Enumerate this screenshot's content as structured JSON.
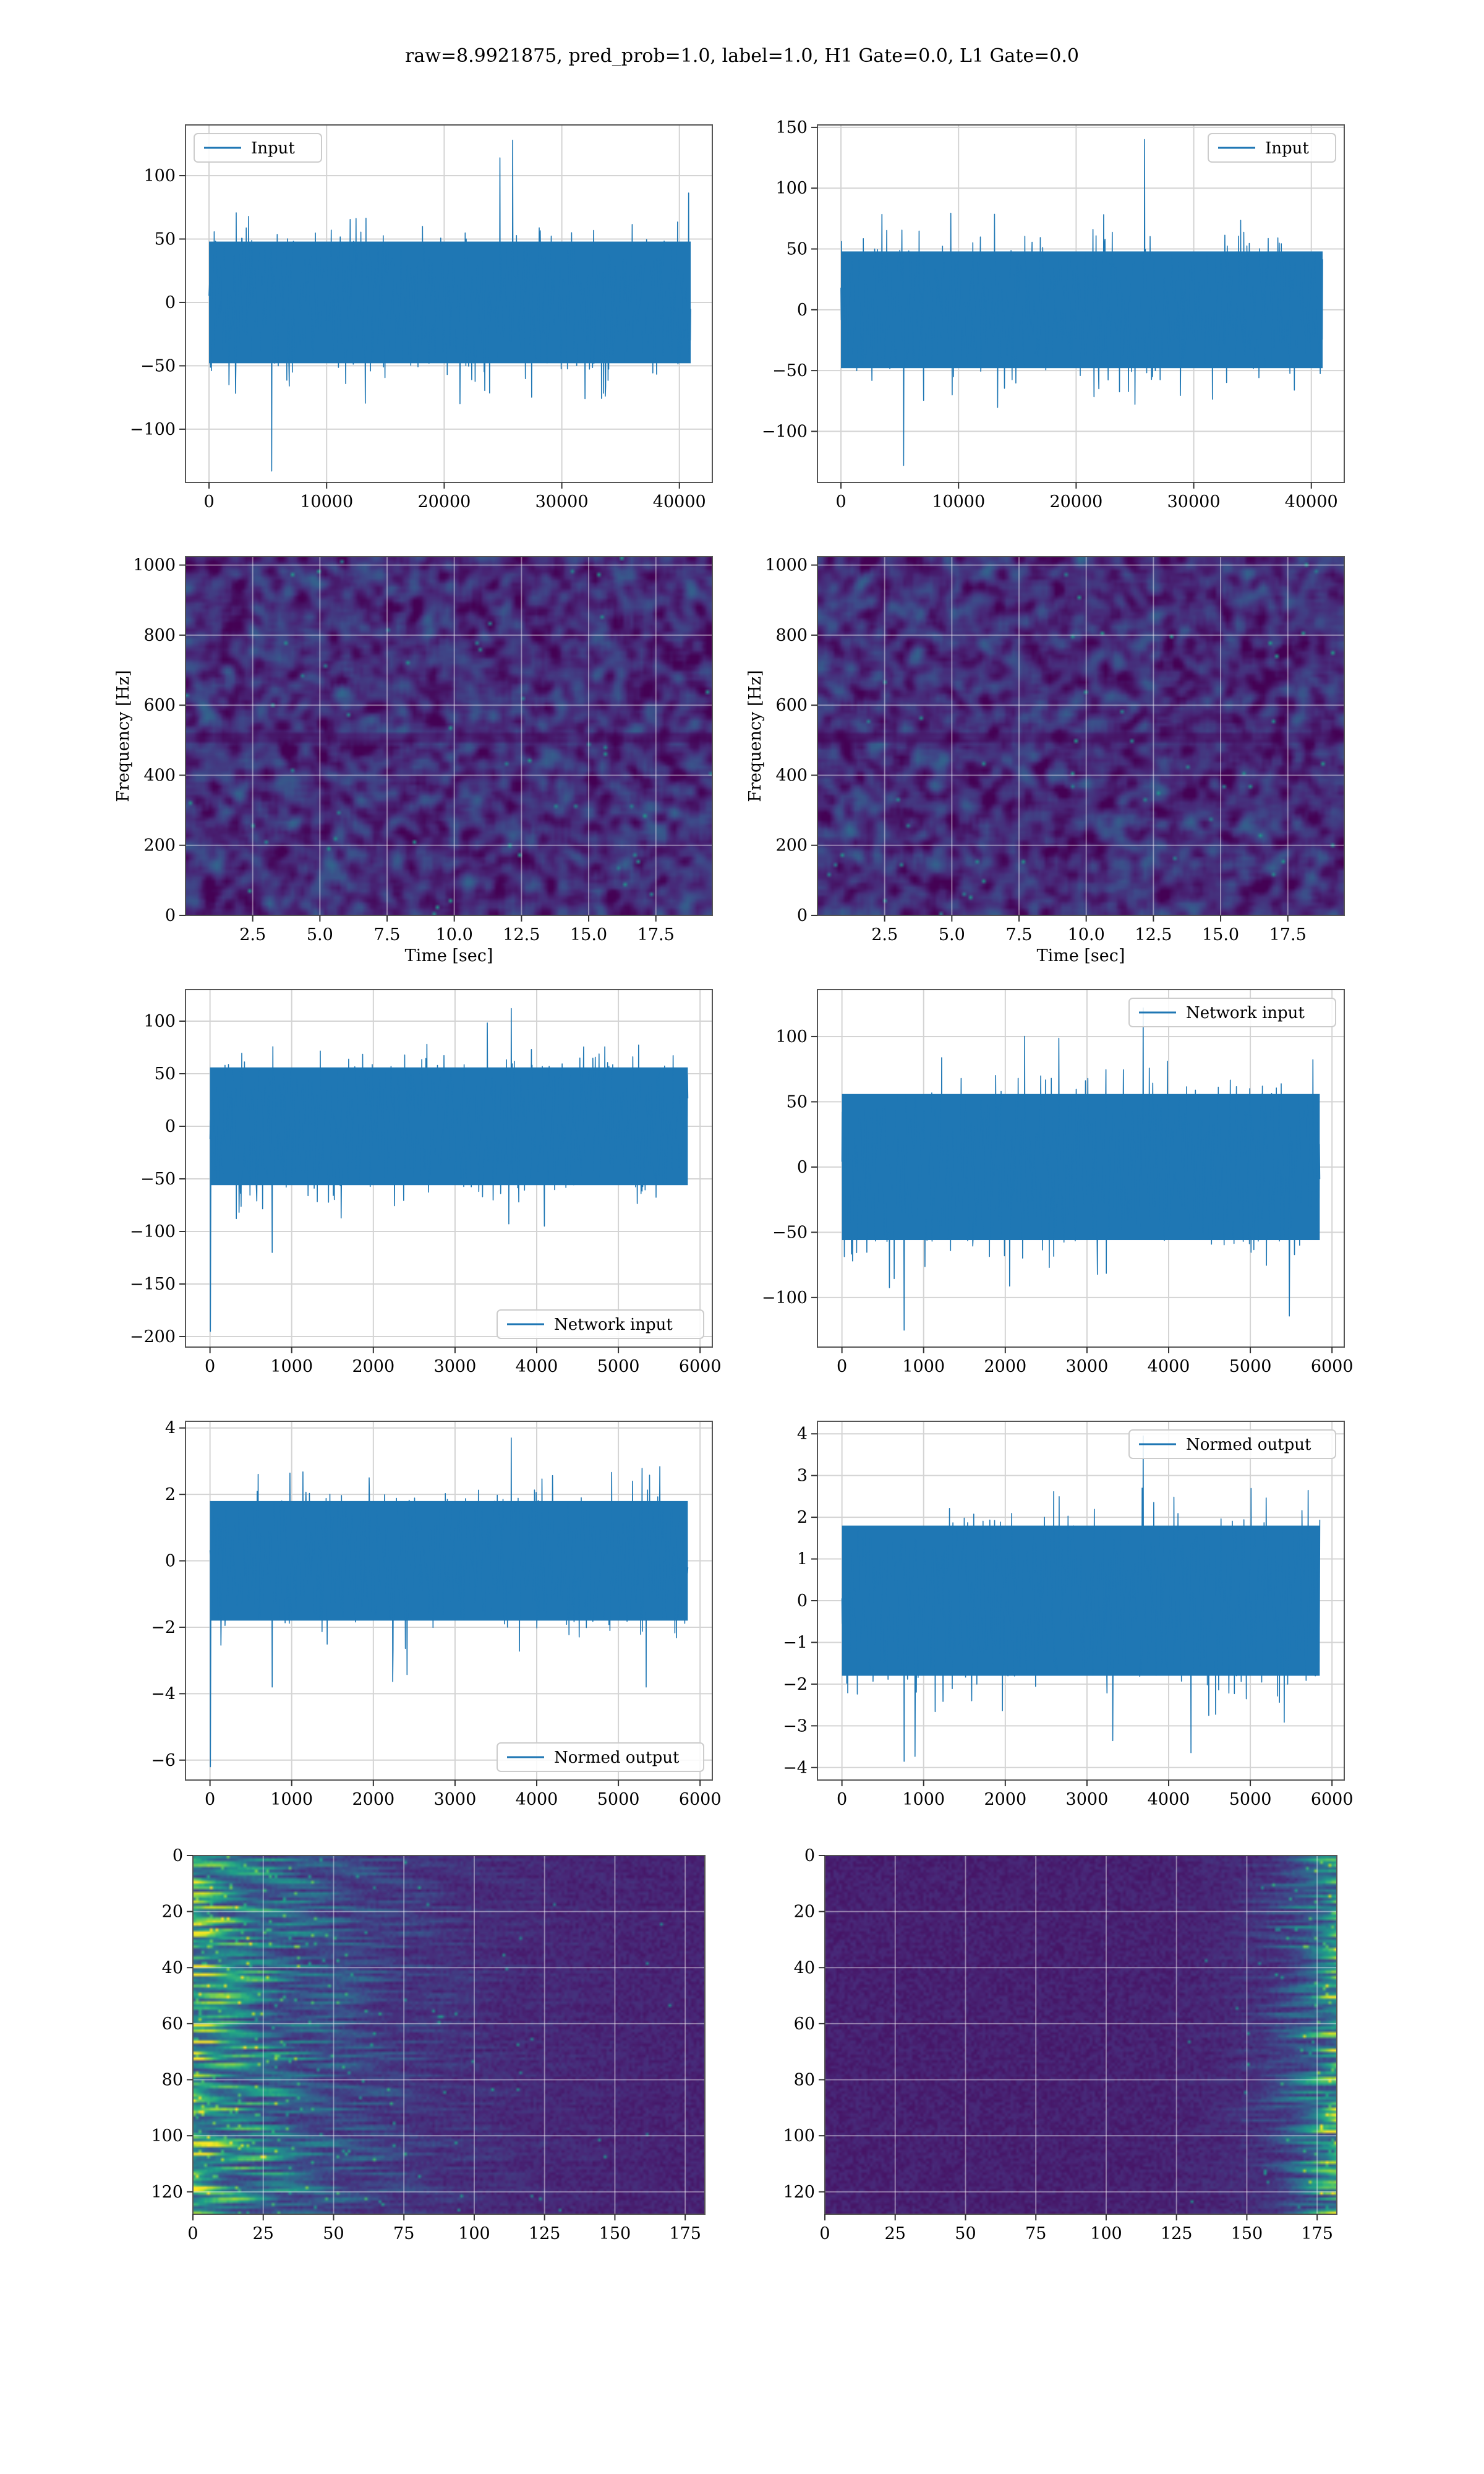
{
  "suptitle": "raw=8.9921875, pred_prob=1.0, label=1.0, H1 Gate=0.0, L1 Gate=0.0",
  "colors": {
    "line": "#1f77b4",
    "grid": "#d4d4d4",
    "axes": "#555555",
    "viridis": [
      "#440154",
      "#482878",
      "#3e4989",
      "#31688e",
      "#26828e",
      "#1f9e89",
      "#35b779",
      "#6ece58",
      "#b5de2b",
      "#fde725"
    ]
  },
  "chart_data": [
    {
      "id": "h1-input",
      "type": "line",
      "legend_label": "Input",
      "legend_loc": "upper left",
      "xlim": [
        -2000,
        42800
      ],
      "ylim": [
        -142,
        140
      ],
      "xticks": [
        0,
        10000,
        20000,
        30000,
        40000
      ],
      "xtick_labels": [
        "0",
        "10000",
        "20000",
        "30000",
        "40000"
      ],
      "yticks": [
        -100,
        -50,
        0,
        50,
        100
      ],
      "ytick_labels": [
        "−100",
        "−50",
        "0",
        "50",
        "100"
      ],
      "xlabel": "",
      "ylabel": "",
      "grid": true,
      "signal": {
        "n_points": 40960,
        "x_start": 0,
        "x_end": 40960,
        "std": 24,
        "max": 128,
        "min": -133,
        "spike_x": null,
        "spike_y": null
      }
    },
    {
      "id": "l1-input",
      "type": "line",
      "legend_label": "Input",
      "legend_loc": "upper right",
      "xlim": [
        -2000,
        42800
      ],
      "ylim": [
        -142,
        152
      ],
      "xticks": [
        0,
        10000,
        20000,
        30000,
        40000
      ],
      "xtick_labels": [
        "0",
        "10000",
        "20000",
        "30000",
        "40000"
      ],
      "yticks": [
        -100,
        -50,
        0,
        50,
        100,
        150
      ],
      "ytick_labels": [
        "−100",
        "−50",
        "0",
        "50",
        "100",
        "150"
      ],
      "xlabel": "",
      "ylabel": "",
      "grid": true,
      "signal": {
        "n_points": 40960,
        "x_start": 0,
        "x_end": 40960,
        "std": 24,
        "max": 140,
        "min": -128,
        "spike_x": null,
        "spike_y": null
      }
    },
    {
      "id": "h1-spectrogram",
      "type": "heatmap",
      "variant": "spectrogram",
      "xlim": [
        0,
        19.6
      ],
      "ylim": [
        0,
        1024
      ],
      "xticks": [
        2.5,
        5.0,
        7.5,
        10.0,
        12.5,
        15.0,
        17.5
      ],
      "xtick_labels": [
        "2.5",
        "5.0",
        "7.5",
        "10.0",
        "12.5",
        "15.0",
        "17.5"
      ],
      "yticks": [
        0,
        200,
        400,
        600,
        800,
        1000
      ],
      "ytick_labels": [
        "0",
        "200",
        "400",
        "600",
        "800",
        "1000"
      ],
      "xlabel": "Time [sec]",
      "ylabel": "Frequency [Hz]",
      "grid": true
    },
    {
      "id": "l1-spectrogram",
      "type": "heatmap",
      "variant": "spectrogram",
      "xlim": [
        0,
        19.6
      ],
      "ylim": [
        0,
        1024
      ],
      "xticks": [
        2.5,
        5.0,
        7.5,
        10.0,
        12.5,
        15.0,
        17.5
      ],
      "xtick_labels": [
        "2.5",
        "5.0",
        "7.5",
        "10.0",
        "12.5",
        "15.0",
        "17.5"
      ],
      "yticks": [
        0,
        200,
        400,
        600,
        800,
        1000
      ],
      "ytick_labels": [
        "0",
        "200",
        "400",
        "600",
        "800",
        "1000"
      ],
      "xlabel": "Time [sec]",
      "ylabel": "Frequency [Hz]",
      "grid": true
    },
    {
      "id": "h1-network-input",
      "type": "line",
      "legend_label": "Network input",
      "legend_loc": "lower right",
      "xlim": [
        -300,
        6150
      ],
      "ylim": [
        -210,
        130
      ],
      "xticks": [
        0,
        1000,
        2000,
        3000,
        4000,
        5000,
        6000
      ],
      "xtick_labels": [
        "0",
        "1000",
        "2000",
        "3000",
        "4000",
        "5000",
        "6000"
      ],
      "yticks": [
        -200,
        -150,
        -100,
        -50,
        0,
        50,
        100
      ],
      "ytick_labels": [
        "−200",
        "−150",
        "−100",
        "−50",
        "0",
        "50",
        "100"
      ],
      "xlabel": "",
      "ylabel": "",
      "grid": true,
      "signal": {
        "n_points": 5850,
        "x_start": 0,
        "x_end": 5850,
        "std": 28,
        "max": 112,
        "min": -120,
        "spike_x": 5,
        "spike_y": -195
      }
    },
    {
      "id": "l1-network-input",
      "type": "line",
      "legend_label": "Network input",
      "legend_loc": "upper right",
      "xlim": [
        -300,
        6150
      ],
      "ylim": [
        -138,
        136
      ],
      "xticks": [
        0,
        1000,
        2000,
        3000,
        4000,
        5000,
        6000
      ],
      "xtick_labels": [
        "0",
        "1000",
        "2000",
        "3000",
        "4000",
        "5000",
        "6000"
      ],
      "yticks": [
        -100,
        -50,
        0,
        50,
        100
      ],
      "ytick_labels": [
        "−100",
        "−50",
        "0",
        "50",
        "100"
      ],
      "xlabel": "",
      "ylabel": "",
      "grid": true,
      "signal": {
        "n_points": 5850,
        "x_start": 0,
        "x_end": 5850,
        "std": 28,
        "max": 122,
        "min": -125,
        "spike_x": null,
        "spike_y": null
      }
    },
    {
      "id": "h1-normed-output",
      "type": "line",
      "legend_label": "Normed output",
      "legend_loc": "lower right",
      "xlim": [
        -300,
        6150
      ],
      "ylim": [
        -6.6,
        4.2
      ],
      "xticks": [
        0,
        1000,
        2000,
        3000,
        4000,
        5000,
        6000
      ],
      "xtick_labels": [
        "0",
        "1000",
        "2000",
        "3000",
        "4000",
        "5000",
        "6000"
      ],
      "yticks": [
        -6,
        -4,
        -2,
        0,
        2,
        4
      ],
      "ytick_labels": [
        "−6",
        "−4",
        "−2",
        "0",
        "2",
        "4"
      ],
      "xlabel": "",
      "ylabel": "",
      "grid": true,
      "signal": {
        "n_points": 5850,
        "x_start": 0,
        "x_end": 5850,
        "std": 0.9,
        "max": 3.7,
        "min": -3.8,
        "spike_x": 5,
        "spike_y": -6.2
      }
    },
    {
      "id": "l1-normed-output",
      "type": "line",
      "legend_label": "Normed output",
      "legend_loc": "upper right",
      "xlim": [
        -300,
        6150
      ],
      "ylim": [
        -4.3,
        4.3
      ],
      "xticks": [
        0,
        1000,
        2000,
        3000,
        4000,
        5000,
        6000
      ],
      "xtick_labels": [
        "0",
        "1000",
        "2000",
        "3000",
        "4000",
        "5000",
        "6000"
      ],
      "yticks": [
        -4,
        -3,
        -2,
        -1,
        0,
        1,
        2,
        3,
        4
      ],
      "ytick_labels": [
        "−4",
        "−3",
        "−2",
        "−1",
        "0",
        "1",
        "2",
        "3",
        "4"
      ],
      "xlabel": "",
      "ylabel": "",
      "grid": true,
      "signal": {
        "n_points": 5850,
        "x_start": 0,
        "x_end": 5850,
        "std": 0.9,
        "max": 3.95,
        "min": -3.85,
        "spike_x": null,
        "spike_y": null
      }
    },
    {
      "id": "h1-feature-map",
      "type": "heatmap",
      "variant": "feature-map",
      "energy": "left",
      "xlim": [
        0,
        182
      ],
      "ylim": [
        128,
        0
      ],
      "y_inverted": true,
      "xticks": [
        0,
        25,
        50,
        75,
        100,
        125,
        150,
        175
      ],
      "xtick_labels": [
        "0",
        "25",
        "50",
        "75",
        "100",
        "125",
        "150",
        "175"
      ],
      "yticks": [
        0,
        20,
        40,
        60,
        80,
        100,
        120
      ],
      "ytick_labels": [
        "0",
        "20",
        "40",
        "60",
        "80",
        "100",
        "120"
      ],
      "xlabel": "",
      "ylabel": "",
      "grid": true
    },
    {
      "id": "l1-feature-map",
      "type": "heatmap",
      "variant": "feature-map",
      "energy": "right",
      "xlim": [
        0,
        182
      ],
      "ylim": [
        128,
        0
      ],
      "y_inverted": true,
      "xticks": [
        0,
        25,
        50,
        75,
        100,
        125,
        150,
        175
      ],
      "xtick_labels": [
        "0",
        "25",
        "50",
        "75",
        "100",
        "125",
        "150",
        "175"
      ],
      "yticks": [
        0,
        20,
        40,
        60,
        80,
        100,
        120
      ],
      "ytick_labels": [
        "0",
        "20",
        "40",
        "60",
        "80",
        "100",
        "120"
      ],
      "xlabel": "",
      "ylabel": "",
      "grid": true
    }
  ]
}
